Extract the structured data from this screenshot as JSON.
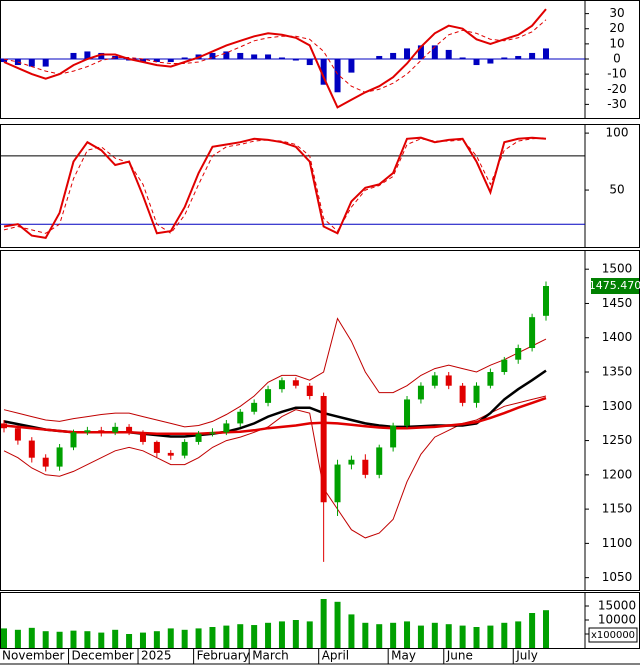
{
  "chart_data": [
    {
      "type": "macd",
      "ylim": [
        -39,
        39
      ],
      "yticks": [
        30,
        20,
        10,
        0,
        -10,
        -20,
        -30
      ],
      "zero_line_color": "#0000c0",
      "macd": {
        "color": "#e00000",
        "values": [
          -2,
          -6,
          -10,
          -13,
          -10,
          -4,
          0,
          3,
          3,
          0,
          -2,
          -4,
          -5,
          -2,
          1,
          5,
          9,
          12,
          15,
          17,
          16,
          14,
          9,
          -12,
          -32,
          -27,
          -22,
          -18,
          -12,
          -3,
          8,
          17,
          22,
          20,
          13,
          10,
          13,
          16,
          22,
          33
        ]
      },
      "signal": {
        "color": "#e00000",
        "values": [
          0,
          -2,
          -5,
          -8,
          -10,
          -8,
          -5,
          -1,
          1,
          1,
          0,
          -2,
          -3,
          -3,
          -2,
          1,
          4,
          8,
          12,
          14,
          15,
          15,
          13,
          5,
          -10,
          -18,
          -22,
          -20,
          -16,
          -10,
          -1,
          8,
          16,
          19,
          17,
          13,
          12,
          14,
          18,
          26
        ]
      },
      "histogram": {
        "color": "#0000c0",
        "values": [
          -2,
          -4,
          -5,
          -5,
          0,
          4,
          5,
          4,
          2,
          -1,
          -2,
          -2,
          -2,
          1,
          3,
          4,
          5,
          4,
          3,
          3,
          1,
          -1,
          -4,
          -17,
          -22,
          -9,
          0,
          2,
          4,
          7,
          9,
          9,
          6,
          1,
          -4,
          -3,
          1,
          2,
          4,
          7
        ]
      }
    },
    {
      "type": "stochastic",
      "ylim": [
        0,
        108
      ],
      "yticks": [
        100,
        50
      ],
      "levels": [
        80,
        20
      ],
      "level_colors": [
        "#000000",
        "#0000c0"
      ],
      "k": {
        "color": "#e00000",
        "values": [
          18,
          20,
          10,
          8,
          30,
          75,
          92,
          85,
          72,
          75,
          45,
          12,
          14,
          35,
          65,
          88,
          90,
          92,
          95,
          94,
          92,
          88,
          75,
          18,
          12,
          40,
          52,
          55,
          65,
          95,
          96,
          92,
          94,
          95,
          75,
          48,
          92,
          95,
          96,
          95
        ]
      },
      "d": {
        "color": "#e00000",
        "values": [
          15,
          18,
          15,
          12,
          20,
          60,
          85,
          88,
          78,
          74,
          55,
          20,
          12,
          28,
          55,
          80,
          88,
          90,
          93,
          94,
          93,
          90,
          80,
          25,
          14,
          35,
          50,
          54,
          62,
          90,
          95,
          93,
          93,
          94,
          80,
          55,
          85,
          93,
          95,
          96
        ]
      }
    },
    {
      "type": "candlestick",
      "ylim": [
        1032,
        1528
      ],
      "yticks": [
        1500,
        1450,
        1400,
        1350,
        1300,
        1250,
        1200,
        1150,
        1100,
        1050
      ],
      "up_color": "#00a000",
      "down_color": "#e00000",
      "open": [
        1275,
        1268,
        1250,
        1225,
        1212,
        1240,
        1262,
        1265,
        1262,
        1270,
        1262,
        1248,
        1232,
        1228,
        1248,
        1260,
        1262,
        1275,
        1292,
        1305,
        1325,
        1338,
        1330,
        1315,
        1160,
        1215,
        1222,
        1200,
        1240,
        1272,
        1310,
        1330,
        1345,
        1330,
        1305,
        1330,
        1350,
        1368,
        1385,
        1432
      ],
      "high": [
        1280,
        1272,
        1255,
        1230,
        1245,
        1266,
        1270,
        1270,
        1276,
        1274,
        1265,
        1250,
        1236,
        1252,
        1264,
        1268,
        1280,
        1296,
        1310,
        1330,
        1342,
        1342,
        1334,
        1320,
        1222,
        1228,
        1230,
        1244,
        1276,
        1315,
        1335,
        1350,
        1350,
        1334,
        1335,
        1355,
        1372,
        1390,
        1435,
        1482
      ],
      "low": [
        1262,
        1244,
        1218,
        1205,
        1206,
        1236,
        1258,
        1256,
        1258,
        1258,
        1244,
        1226,
        1222,
        1224,
        1244,
        1256,
        1258,
        1270,
        1288,
        1300,
        1320,
        1326,
        1310,
        1073,
        1140,
        1208,
        1195,
        1195,
        1234,
        1268,
        1304,
        1326,
        1325,
        1300,
        1298,
        1326,
        1346,
        1362,
        1380,
        1425
      ],
      "close": [
        1268,
        1250,
        1225,
        1212,
        1240,
        1262,
        1265,
        1262,
        1270,
        1262,
        1248,
        1232,
        1228,
        1248,
        1260,
        1262,
        1275,
        1292,
        1305,
        1325,
        1338,
        1330,
        1315,
        1160,
        1215,
        1222,
        1200,
        1240,
        1272,
        1310,
        1330,
        1345,
        1330,
        1305,
        1330,
        1350,
        1368,
        1385,
        1430,
        1475.47
      ],
      "last_price": {
        "value": 1475.47,
        "label": "1475.470",
        "color": "#008000"
      },
      "overlays": [
        {
          "color": "#c00000",
          "width": 1,
          "values": [
            1295,
            1290,
            1285,
            1280,
            1278,
            1282,
            1285,
            1288,
            1290,
            1290,
            1285,
            1280,
            1275,
            1270,
            1272,
            1278,
            1288,
            1300,
            1315,
            1335,
            1345,
            1345,
            1338,
            1350,
            1428,
            1395,
            1350,
            1320,
            1320,
            1330,
            1345,
            1355,
            1360,
            1355,
            1350,
            1360,
            1368,
            1378,
            1388,
            1398
          ]
        },
        {
          "color": "#c00000",
          "width": 1,
          "values": [
            1235,
            1225,
            1210,
            1200,
            1198,
            1205,
            1215,
            1225,
            1235,
            1240,
            1235,
            1225,
            1215,
            1215,
            1225,
            1240,
            1250,
            1255,
            1262,
            1270,
            1285,
            1295,
            1290,
            1180,
            1150,
            1120,
            1108,
            1115,
            1135,
            1190,
            1230,
            1255,
            1265,
            1275,
            1280,
            1290,
            1300,
            1305,
            1310,
            1315
          ]
        },
        {
          "color": "#000000",
          "width": 2.5,
          "values": [
            1278,
            1274,
            1270,
            1266,
            1264,
            1262,
            1262,
            1262,
            1262,
            1262,
            1260,
            1258,
            1256,
            1256,
            1258,
            1260,
            1263,
            1268,
            1275,
            1285,
            1292,
            1298,
            1298,
            1290,
            1285,
            1280,
            1275,
            1272,
            1270,
            1270,
            1271,
            1272,
            1272,
            1272,
            1275,
            1290,
            1310,
            1325,
            1338,
            1352
          ]
        },
        {
          "color": "#e00000",
          "width": 2.5,
          "values": [
            1272,
            1270,
            1268,
            1266,
            1264,
            1262,
            1262,
            1262,
            1262,
            1262,
            1261,
            1260,
            1260,
            1260,
            1260,
            1261,
            1262,
            1263,
            1265,
            1268,
            1270,
            1272,
            1275,
            1276,
            1275,
            1273,
            1271,
            1269,
            1268,
            1268,
            1269,
            1270,
            1272,
            1274,
            1277,
            1283,
            1290,
            1298,
            1305,
            1312
          ]
        }
      ]
    },
    {
      "type": "bar",
      "ylim": [
        0,
        20000
      ],
      "yticks": [
        15000,
        10000,
        5000
      ],
      "unit_label": "x100000",
      "color": "#00a000",
      "categories": [
        "November",
        null,
        null,
        null,
        null,
        "December",
        null,
        null,
        null,
        null,
        "2025",
        null,
        null,
        null,
        "February",
        null,
        null,
        null,
        "March",
        null,
        null,
        null,
        null,
        "April",
        null,
        null,
        null,
        null,
        "May",
        null,
        null,
        null,
        "June",
        null,
        null,
        null,
        null,
        "July",
        null,
        null
      ],
      "values": [
        7000,
        6500,
        7200,
        6000,
        5800,
        6200,
        6000,
        5500,
        6500,
        5000,
        5500,
        6000,
        7000,
        6500,
        7000,
        7500,
        8000,
        8500,
        8200,
        9000,
        9500,
        10000,
        9500,
        17500,
        16500,
        12000,
        9000,
        8500,
        9000,
        9500,
        8000,
        9000,
        8500,
        8000,
        7500,
        8000,
        9000,
        9500,
        12500,
        13500
      ]
    }
  ]
}
